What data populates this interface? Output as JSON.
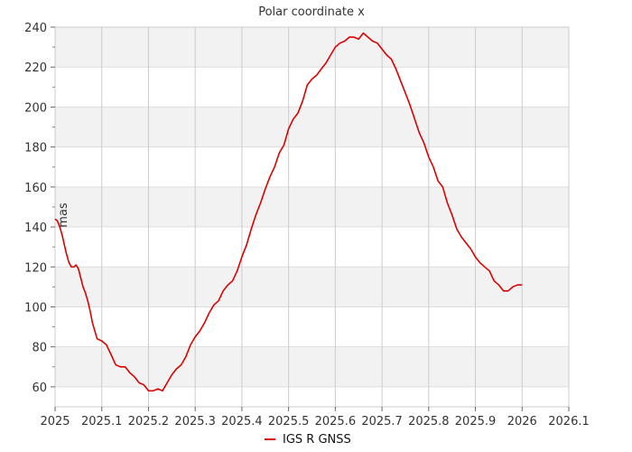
{
  "chart_data": {
    "type": "line",
    "title": "Polar coordinate x",
    "ylabel": "mas",
    "xlabel": "",
    "xlim": [
      2025,
      2026.1
    ],
    "ylim": [
      50,
      240
    ],
    "xticks": [
      2025,
      2025.1,
      2025.2,
      2025.3,
      2025.4,
      2025.5,
      2025.6,
      2025.7,
      2025.8,
      2025.9,
      2026,
      2026.1
    ],
    "xtick_labels": [
      "2025",
      "2025.1",
      "2025.2",
      "2025.3",
      "2025.4",
      "2025.5",
      "2025.6",
      "2025.7",
      "2025.8",
      "2025.9",
      "2026",
      "2026.1"
    ],
    "yticks": [
      60,
      80,
      100,
      120,
      140,
      160,
      180,
      200,
      220,
      240
    ],
    "ytick_labels": [
      "60",
      "80",
      "100",
      "120",
      "140",
      "160",
      "180",
      "200",
      "220",
      "240"
    ],
    "grid": true,
    "legend": "bottom-center",
    "series": [
      {
        "name": "IGS R GNSS",
        "color": "#dd0000",
        "x": [
          2025.0,
          2025.005,
          2025.01,
          2025.015,
          2025.02,
          2025.025,
          2025.03,
          2025.035,
          2025.04,
          2025.045,
          2025.05,
          2025.06,
          2025.065,
          2025.07,
          2025.075,
          2025.08,
          2025.09,
          2025.1,
          2025.11,
          2025.12,
          2025.13,
          2025.14,
          2025.15,
          2025.16,
          2025.17,
          2025.18,
          2025.19,
          2025.2,
          2025.21,
          2025.22,
          2025.23,
          2025.24,
          2025.25,
          2025.26,
          2025.27,
          2025.28,
          2025.29,
          2025.3,
          2025.31,
          2025.32,
          2025.33,
          2025.34,
          2025.35,
          2025.36,
          2025.37,
          2025.38,
          2025.39,
          2025.4,
          2025.41,
          2025.42,
          2025.43,
          2025.44,
          2025.45,
          2025.46,
          2025.47,
          2025.48,
          2025.49,
          2025.5,
          2025.51,
          2025.52,
          2025.53,
          2025.54,
          2025.55,
          2025.56,
          2025.57,
          2025.58,
          2025.59,
          2025.6,
          2025.61,
          2025.62,
          2025.63,
          2025.64,
          2025.65,
          2025.66,
          2025.67,
          2025.68,
          2025.69,
          2025.7,
          2025.71,
          2025.72,
          2025.73,
          2025.74,
          2025.75,
          2025.76,
          2025.77,
          2025.78,
          2025.79,
          2025.8,
          2025.81,
          2025.82,
          2025.83,
          2025.84,
          2025.85,
          2025.86,
          2025.87,
          2025.88,
          2025.89,
          2025.9,
          2025.91,
          2025.92,
          2025.93,
          2025.94,
          2025.95,
          2025.96,
          2025.97,
          2025.98,
          2025.99,
          2026.0
        ],
        "y": [
          144,
          143,
          140,
          136,
          131,
          126,
          122,
          120,
          120,
          121,
          119,
          110,
          107,
          103,
          98,
          92,
          84,
          83,
          81,
          76,
          71,
          70,
          70,
          67,
          65,
          62,
          61,
          58,
          58,
          59,
          58,
          62,
          66,
          69,
          71,
          75,
          81,
          85,
          88,
          92,
          97,
          101,
          103,
          108,
          111,
          113,
          118,
          125,
          131,
          139,
          146,
          152,
          159,
          165,
          170,
          177,
          181,
          189,
          194,
          197,
          203,
          211,
          214,
          216,
          219,
          222,
          226,
          230,
          232,
          233,
          235,
          235,
          234,
          237,
          235,
          233,
          232,
          229,
          226,
          224,
          219,
          213,
          207,
          201,
          194,
          187,
          182,
          175,
          170,
          163,
          160,
          152,
          146,
          139,
          135,
          132,
          129,
          125,
          122,
          120,
          118,
          113,
          111,
          108,
          108,
          110,
          111,
          111
        ]
      }
    ]
  }
}
